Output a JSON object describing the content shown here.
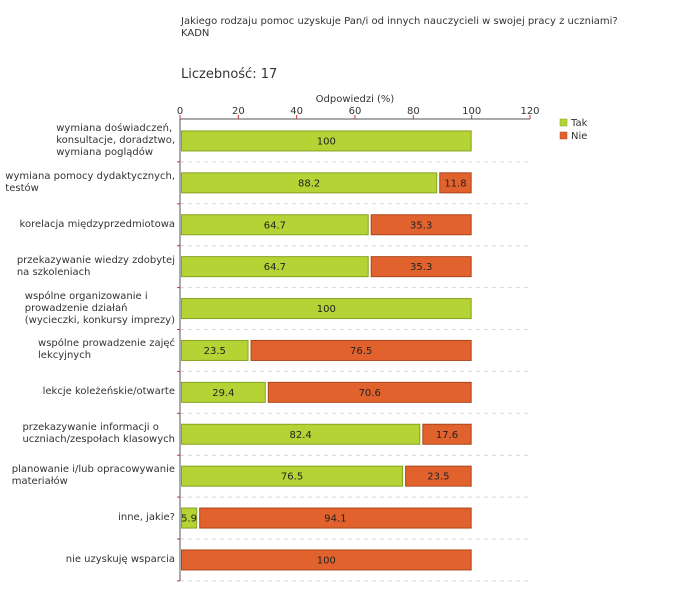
{
  "chart_data": {
    "type": "bar",
    "orientation": "horizontal",
    "stacked": true,
    "title": "Jakiego rodzaju pomoc uzyskuje Pan/i od innych nauczycieli w swojej pracy z uczniami?",
    "subtitle": "KADN",
    "note": "Liczebność: 17",
    "xlabel": "Odpowiedzi (%)",
    "ylabel": "",
    "xlim": [
      0,
      120
    ],
    "xticks": [
      0,
      20,
      40,
      60,
      80,
      100,
      120
    ],
    "grid": true,
    "legend_position": "top-right",
    "categories": [
      "wymiana doświadczeń,\nkonsultacje, doradztwo,\nwymiana poglądów",
      "wymiana pomocy dydaktycznych,\ntestów",
      "korelacja międzyprzedmiotowa",
      "przekazywanie wiedzy zdobytej\nna szkoleniach",
      "wspólne organizowanie i\nprowadzenie działań\n(wycieczki, konkursy imprezy)",
      "wspólne prowadzenie zajęć\nlekcyjnych",
      "lekcje koleżeńskie/otwarte",
      "przekazywanie informacji o\nuczniach/zespołach klasowych",
      "planowanie i/lub opracowywanie\nmateriałów",
      "inne, jakie?",
      "nie uzyskuję wsparcia"
    ],
    "series": [
      {
        "name": "Tak",
        "color": "#b5d335",
        "stroke": "#86a321",
        "values": [
          100,
          88.2,
          64.7,
          64.7,
          100,
          23.5,
          29.4,
          82.4,
          76.5,
          5.9,
          0
        ]
      },
      {
        "name": "Nie",
        "color": "#e2622d",
        "stroke": "#a9461c",
        "values": [
          0,
          11.8,
          35.3,
          35.3,
          0,
          76.5,
          70.6,
          17.6,
          23.5,
          94.1,
          100
        ]
      }
    ],
    "colors": {
      "axis": "#555555",
      "tick": "#cc3333",
      "grid": "#d6d6d6",
      "text": "#333333",
      "label": "#222222"
    }
  }
}
